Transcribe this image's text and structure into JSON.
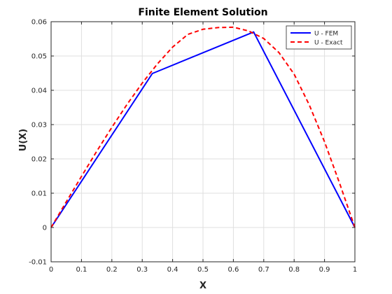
{
  "chart_data": {
    "type": "line",
    "title": "Finite Element Solution",
    "xlabel": "X",
    "ylabel": "U(X)",
    "xlim": [
      0,
      1
    ],
    "ylim": [
      -0.01,
      0.06
    ],
    "xticks": [
      0,
      0.1,
      0.2,
      0.3,
      0.4,
      0.5,
      0.6,
      0.7,
      0.8,
      0.9,
      1
    ],
    "xtick_labels": [
      "0",
      "0.1",
      "0.2",
      "0.3",
      "0.4",
      "0.5",
      "0.6",
      "0.7",
      "0.8",
      "0.9",
      "1"
    ],
    "yticks": [
      -0.01,
      0,
      0.01,
      0.02,
      0.03,
      0.04,
      0.05,
      0.06
    ],
    "ytick_labels": [
      "-0.01",
      "0",
      "0.01",
      "0.02",
      "0.03",
      "0.04",
      "0.05",
      "0.06"
    ],
    "grid": true,
    "legend_position": "top-right",
    "series": [
      {
        "name": "U - FEM",
        "color": "#0000ff",
        "style": "solid",
        "x": [
          0,
          0.3333,
          0.6667,
          1
        ],
        "y": [
          0,
          0.0449,
          0.057,
          0
        ]
      },
      {
        "name": "U - Exact",
        "color": "#ff0000",
        "style": "dashed",
        "x": [
          0,
          0.05,
          0.1,
          0.15,
          0.2,
          0.25,
          0.3,
          0.35,
          0.4,
          0.45,
          0.5,
          0.55,
          0.6,
          0.65,
          0.7,
          0.75,
          0.8,
          0.85,
          0.9,
          0.95,
          1
        ],
        "y": [
          0,
          0.0075,
          0.0149,
          0.0222,
          0.0292,
          0.0359,
          0.0421,
          0.0477,
          0.0526,
          0.0563,
          0.0578,
          0.0583,
          0.0584,
          0.0573,
          0.0551,
          0.051,
          0.0447,
          0.0357,
          0.025,
          0.0128,
          0
        ]
      }
    ]
  }
}
